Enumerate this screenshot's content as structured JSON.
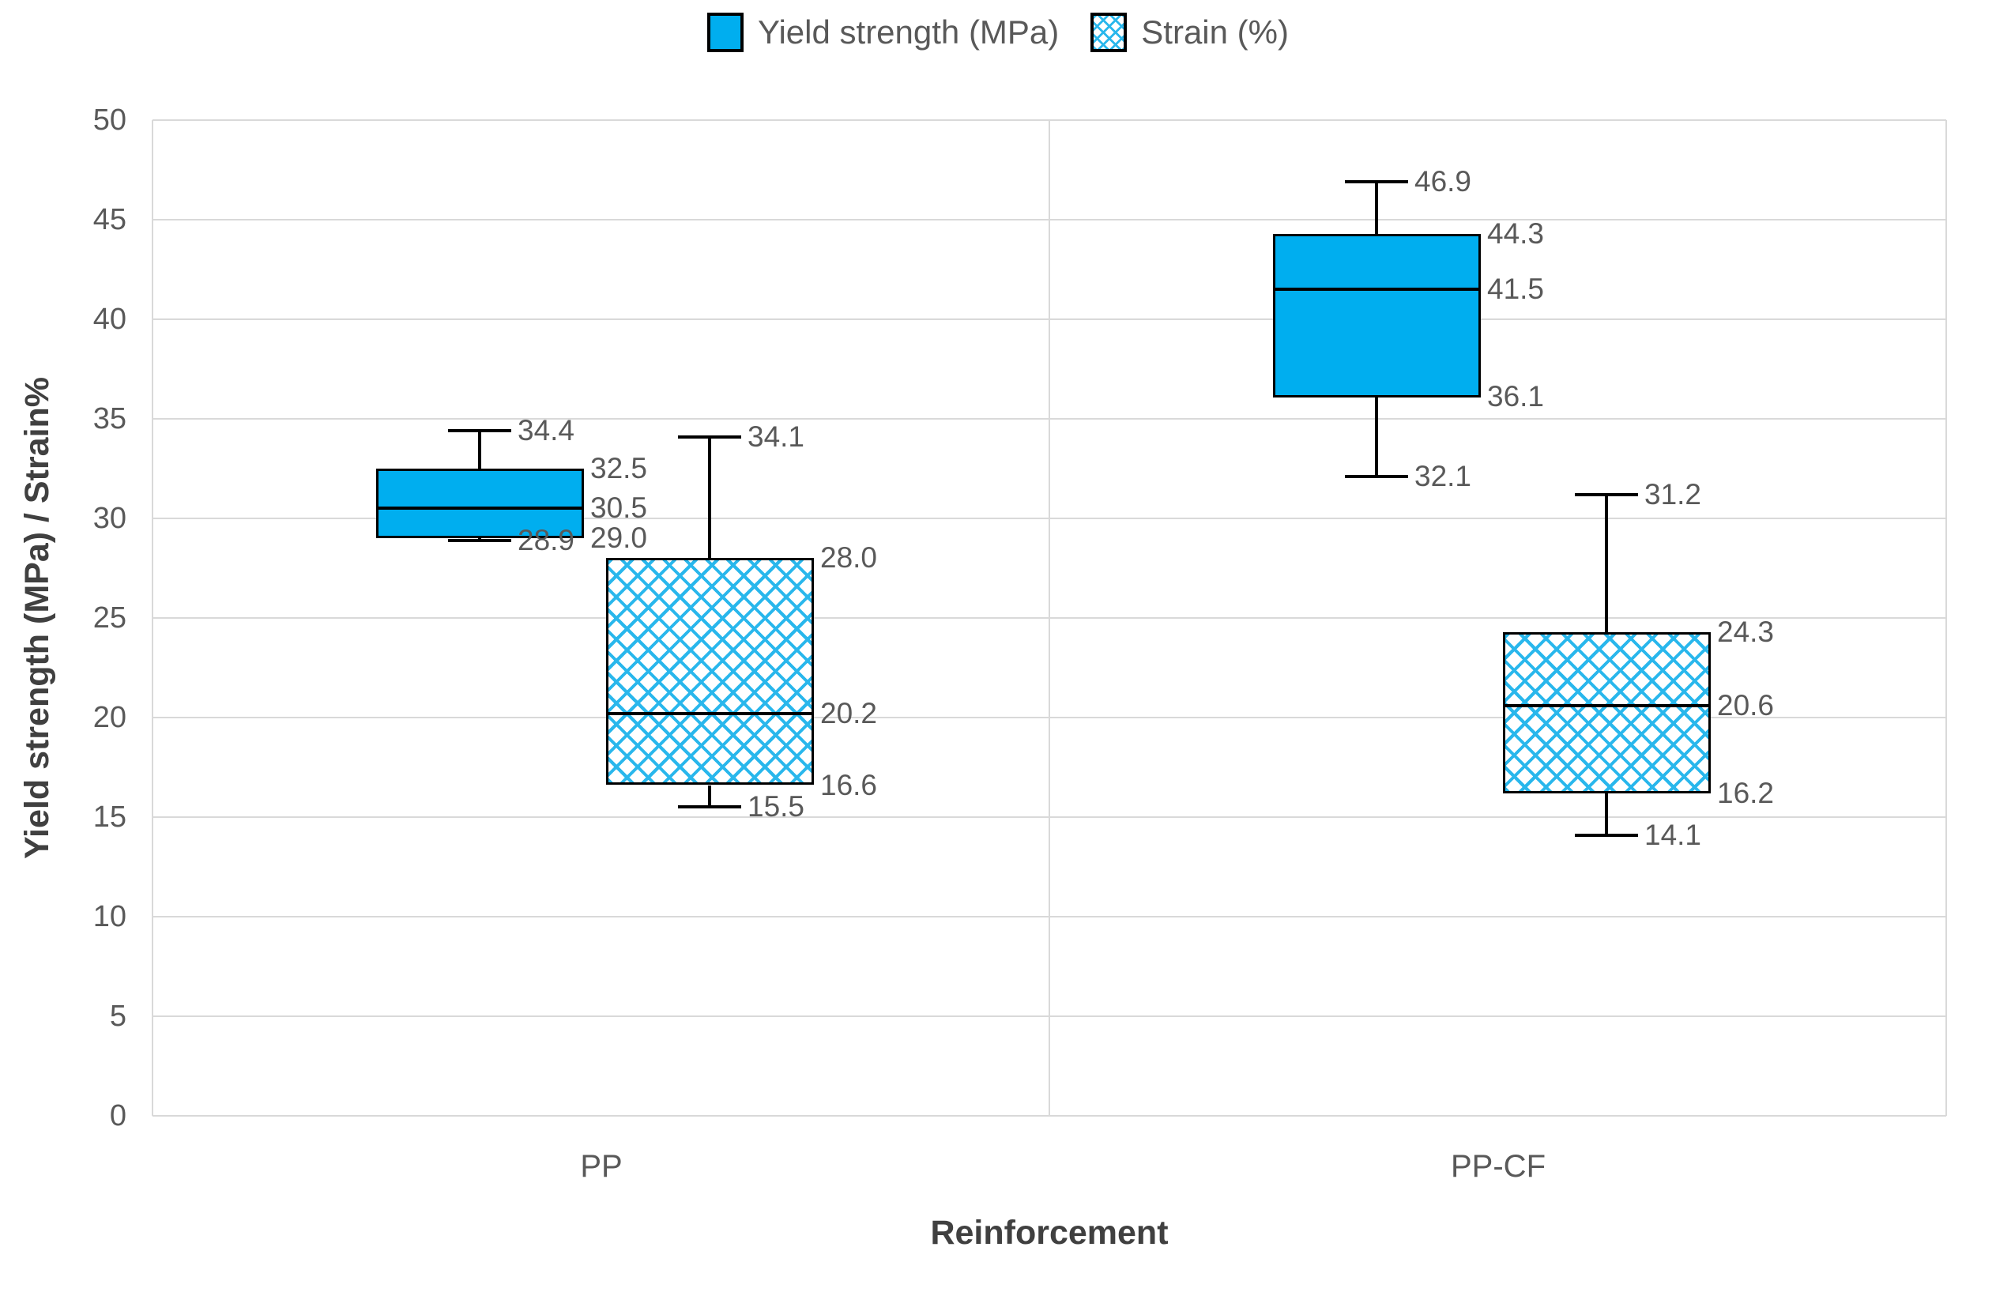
{
  "chart_data": {
    "type": "boxplot",
    "xlabel": "Reinforcement",
    "ylabel": "Yield strength (MPa) / Strain%",
    "categories": [
      "PP",
      "PP-CF"
    ],
    "y_axis": {
      "min": 0,
      "max": 50,
      "step": 5,
      "ticks": [
        0,
        5,
        10,
        15,
        20,
        25,
        30,
        35,
        40,
        45,
        50
      ]
    },
    "grid": "horizontal-major-plus-category-divider",
    "legend_position": "top-center",
    "legend": [
      {
        "label": "Yield strength (MPa)",
        "swatch": "solid"
      },
      {
        "label": "Strain (%)",
        "swatch": "pattern"
      }
    ],
    "series": [
      {
        "name": "Yield strength (MPa)",
        "style": "solid",
        "boxes": [
          {
            "category": "PP",
            "min": 28.9,
            "q1": 29.0,
            "median": 30.5,
            "q3": 32.5,
            "max": 34.4
          },
          {
            "category": "PP-CF",
            "min": 32.1,
            "q1": 36.1,
            "median": 41.5,
            "q3": 44.3,
            "max": 46.9
          }
        ]
      },
      {
        "name": "Strain (%)",
        "style": "pattern",
        "boxes": [
          {
            "category": "PP",
            "min": 15.5,
            "q1": 16.6,
            "median": 20.2,
            "q3": 28.0,
            "max": 34.1
          },
          {
            "category": "PP-CF",
            "min": 14.1,
            "q1": 16.2,
            "median": 20.6,
            "q3": 24.3,
            "max": 31.2
          }
        ]
      }
    ],
    "colors": {
      "solid_fill": "#00AEEF",
      "pattern_line": "#29B7EC",
      "box_border": "#000000",
      "gridline": "#D9D9D9",
      "text": "#595959",
      "title_text": "#404040"
    }
  }
}
